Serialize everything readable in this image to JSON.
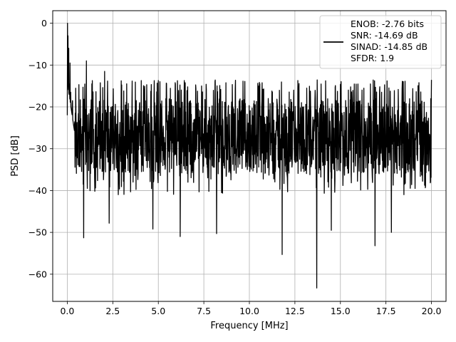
{
  "chart_data": {
    "type": "line",
    "xlabel": "Frequency [MHz]",
    "ylabel": "PSD [dB]",
    "xlim": [
      -0.8,
      20.8
    ],
    "ylim": [
      -66.5,
      3.0
    ],
    "xticks": [
      0.0,
      2.5,
      5.0,
      7.5,
      10.0,
      12.5,
      15.0,
      17.5,
      20.0
    ],
    "xtick_labels": [
      "0.0",
      "2.5",
      "5.0",
      "7.5",
      "10.0",
      "12.5",
      "15.0",
      "17.5",
      "20.0"
    ],
    "yticks": [
      0,
      -10,
      -20,
      -30,
      -40,
      -50,
      -60
    ],
    "ytick_labels": [
      "0",
      "−10",
      "−20",
      "−30",
      "−40",
      "−50",
      "−60"
    ],
    "grid": true,
    "legend_position": "top-right",
    "line_color": "#000000",
    "series": [
      {
        "name": "ENOB: -2.76 bits\nSNR: -14.69 dB\nSINAD: -14.85 dB\nSFDR: 1.9",
        "x_range": [
          0.0,
          20.0
        ],
        "peaks": [
          [
            0.0,
            0.0
          ],
          [
            0.04,
            -3.0
          ],
          [
            0.08,
            -6.0
          ],
          [
            0.15,
            -9.5
          ],
          [
            1.05,
            -9.0
          ],
          [
            2.05,
            -11.5
          ]
        ],
        "dips": [
          [
            0.9,
            -51.3
          ],
          [
            2.3,
            -47.8
          ],
          [
            4.7,
            -49.2
          ],
          [
            6.2,
            -51.0
          ],
          [
            8.2,
            -50.3
          ],
          [
            11.8,
            -55.3
          ],
          [
            13.7,
            -63.3
          ],
          [
            14.5,
            -49.5
          ],
          [
            16.9,
            -53.2
          ],
          [
            17.8,
            -50.0
          ]
        ],
        "noise_floor_mean": -27.0,
        "noise_floor_top": -15.0,
        "noise_floor_bottom": -38.0
      }
    ],
    "legend_lines": [
      "ENOB: -2.76 bits",
      "SNR: -14.69 dB",
      "SINAD: -14.85 dB",
      "SFDR: 1.9"
    ]
  }
}
